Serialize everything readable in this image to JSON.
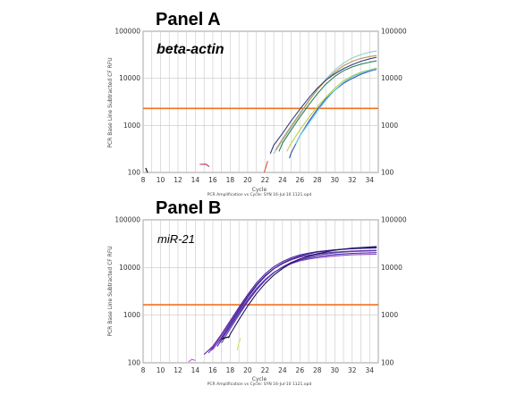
{
  "chart_data": [
    {
      "type": "line",
      "panel_title": "Panel A",
      "gene_label": "beta-actin",
      "ylabel": "PCR Base Line Subtracted CF RFU",
      "xlabel": "Cycle",
      "footer": "PCR Amplification vs Cycle: SYN 16-Jul-10 1121.opd",
      "x_ticks": [
        8,
        10,
        12,
        14,
        16,
        18,
        20,
        22,
        24,
        26,
        28,
        30,
        32,
        34
      ],
      "y_tick_labels": [
        "100",
        "1000",
        "10000",
        "100000"
      ],
      "xlim": [
        8,
        35
      ],
      "ylim": [
        100,
        100000
      ],
      "y_scale": "log",
      "grid": true,
      "threshold": 2300,
      "threshold_color": "#f07020",
      "series": [
        {
          "color": "#8fd0c0",
          "x": [
            23,
            24,
            25,
            26,
            27,
            28,
            29,
            30,
            31,
            32,
            33,
            34,
            34.8
          ],
          "y": [
            250,
            480,
            900,
            1700,
            3200,
            5800,
            9800,
            15000,
            21000,
            27000,
            32000,
            36000,
            38000
          ]
        },
        {
          "color": "#c09060",
          "x": [
            23.2,
            24,
            25,
            26,
            27,
            28,
            29,
            30,
            31,
            32,
            33,
            34,
            34.8
          ],
          "y": [
            300,
            520,
            980,
            1800,
            3300,
            5700,
            9300,
            13500,
            18500,
            23000,
            26500,
            29000,
            30500
          ]
        },
        {
          "color": "#304080",
          "x": [
            22.6,
            23,
            24,
            25,
            26,
            27,
            28,
            29,
            30,
            31,
            32,
            33,
            34,
            34.8
          ],
          "y": [
            250,
            380,
            680,
            1250,
            2200,
            3800,
            6200,
            9200,
            12500,
            16000,
            19500,
            23000,
            26000,
            28000
          ]
        },
        {
          "color": "#308050",
          "x": [
            23.6,
            24,
            25,
            26,
            27,
            28,
            29,
            30,
            31,
            32,
            33,
            34,
            34.8
          ],
          "y": [
            280,
            420,
            800,
            1500,
            2700,
            4700,
            7600,
            11000,
            14500,
            17500,
            20000,
            22000,
            23500
          ]
        },
        {
          "color": "#c0d040",
          "x": [
            24.5,
            25,
            26,
            27,
            28,
            29,
            30,
            31,
            32,
            33,
            34,
            34.8
          ],
          "y": [
            280,
            420,
            800,
            1450,
            2500,
            4000,
            6200,
            8800,
            11300,
            13500,
            15200,
            16500
          ]
        },
        {
          "color": "#3050c0",
          "x": [
            24.8,
            25,
            26,
            27,
            28,
            29,
            30,
            31,
            32,
            33,
            34,
            34.8
          ],
          "y": [
            200,
            260,
            600,
            1200,
            2200,
            3700,
            5600,
            7800,
            10000,
            12200,
            14200,
            15500
          ]
        },
        {
          "color": "#60d0e0",
          "x": [
            25.5,
            26,
            27,
            28,
            29,
            30,
            31,
            32,
            33,
            34,
            34.8
          ],
          "y": [
            400,
            600,
            1100,
            2000,
            3500,
            5600,
            8200,
            10800,
            13000,
            14800,
            16000
          ]
        },
        {
          "color": "#e05040",
          "x": [
            21.9,
            22.1,
            22.3
          ],
          "y": [
            100,
            130,
            175
          ]
        },
        {
          "color": "#c03050",
          "x": [
            14.5,
            15.2,
            15.6
          ],
          "y": [
            148,
            150,
            132
          ]
        },
        {
          "color": "#000000",
          "x": [
            8.3,
            8.5
          ],
          "y": [
            125,
            100
          ]
        }
      ]
    },
    {
      "type": "line",
      "panel_title": "Panel B",
      "gene_label": "miR-21",
      "ylabel": "PCR Base Line Subtracted CF RFU",
      "xlabel": "Cycle",
      "footer": "PCR Amplification vs Cycle: SYN 16-Jul-10 1121.opd",
      "x_ticks": [
        8,
        10,
        12,
        14,
        16,
        18,
        20,
        22,
        24,
        26,
        28,
        30,
        32,
        34
      ],
      "y_tick_labels": [
        "100",
        "1000",
        "10000",
        "100000"
      ],
      "xlim": [
        8,
        35
      ],
      "ylim": [
        100,
        100000
      ],
      "y_scale": "log",
      "grid": true,
      "threshold": 1650,
      "threshold_color": "#f07020",
      "series": [
        {
          "color": "#5020a0",
          "x": [
            15,
            16,
            17,
            18,
            19,
            20,
            21,
            22,
            23,
            24,
            25,
            26,
            27,
            28,
            30,
            32,
            34.8
          ],
          "y": [
            150,
            220,
            400,
            760,
            1450,
            2700,
            4700,
            7300,
            10300,
            13300,
            16000,
            18300,
            20000,
            21500,
            23500,
            25000,
            26500
          ]
        },
        {
          "color": "#7030b0",
          "x": [
            15.5,
            16,
            17,
            18,
            19,
            20,
            21,
            22,
            23,
            24,
            25,
            26,
            27,
            28,
            30,
            32,
            34.8
          ],
          "y": [
            160,
            210,
            380,
            720,
            1350,
            2500,
            4300,
            6700,
            9400,
            12000,
            14500,
            16500,
            18000,
            19200,
            21000,
            22200,
            23000
          ]
        },
        {
          "color": "#302090",
          "x": [
            16,
            17,
            18,
            19,
            20,
            21,
            22,
            23,
            24,
            25,
            26,
            27,
            28,
            30,
            32,
            34.8
          ],
          "y": [
            190,
            340,
            650,
            1250,
            2350,
            4100,
            6500,
            9400,
            12300,
            15000,
            17300,
            19300,
            21000,
            23300,
            24800,
            25800
          ]
        },
        {
          "color": "#9040c0",
          "x": [
            15.8,
            17,
            18,
            19,
            20,
            21,
            22,
            23,
            24,
            25,
            26,
            27,
            28,
            30,
            32,
            34.8
          ],
          "y": [
            180,
            320,
            600,
            1150,
            2100,
            3600,
            5600,
            7900,
            10000,
            12000,
            13700,
            15000,
            16000,
            17500,
            18500,
            19000
          ]
        },
        {
          "color": "#4030b0",
          "x": [
            16.5,
            17,
            18,
            19,
            20,
            21,
            22,
            23,
            24,
            25,
            26,
            27,
            28,
            30,
            32,
            34.8
          ],
          "y": [
            220,
            300,
            580,
            1100,
            2000,
            3500,
            5500,
            7800,
            10200,
            12400,
            14300,
            15800,
            17000,
            18700,
            19800,
            20500
          ]
        },
        {
          "color": "#6040a0",
          "x": [
            17,
            18,
            19,
            20,
            21,
            22,
            23,
            24,
            25,
            26,
            27,
            28,
            30,
            32,
            34.8
          ],
          "y": [
            260,
            520,
            1000,
            1900,
            3300,
            5300,
            7700,
            10300,
            12800,
            15000,
            16800,
            18300,
            20300,
            21700,
            22500
          ]
        },
        {
          "color": "#201060",
          "x": [
            17.8,
            18,
            19,
            20,
            21,
            22,
            23,
            24,
            25,
            26,
            27,
            28,
            30,
            32,
            34.8
          ],
          "y": [
            330,
            400,
            800,
            1550,
            2800,
            4600,
            6900,
            9500,
            12300,
            15000,
            17400,
            19500,
            23000,
            25500,
            27500
          ]
        },
        {
          "color": "#e0e060",
          "x": [
            18.8,
            19,
            19.2
          ],
          "y": [
            180,
            260,
            330
          ]
        },
        {
          "color": "#c060d0",
          "x": [
            13.2,
            13.6,
            14
          ],
          "y": [
            105,
            118,
            112
          ]
        },
        {
          "color": "#000000",
          "x": [
            17,
            17.3,
            17.6,
            17.9
          ],
          "y": [
            310,
            330,
            340,
            355
          ]
        }
      ]
    }
  ]
}
